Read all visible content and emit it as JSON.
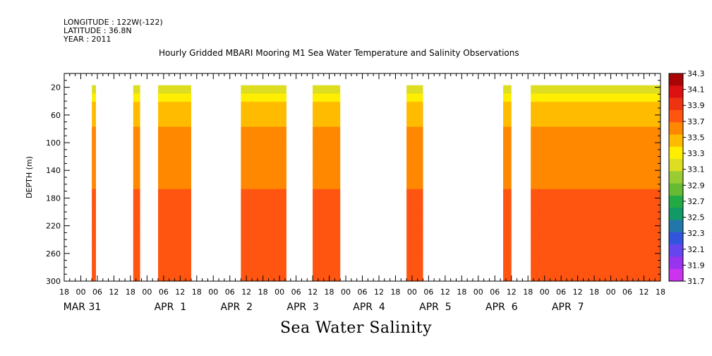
{
  "meta": {
    "longitude": "LONGITUDE : 122W(-122)",
    "latitude": "LATITUDE : 36.8N",
    "year": "YEAR : 2011"
  },
  "plot_title": "Hourly Gridded MBARI Mooring M1 Sea Water Temperature and Salinity Observations",
  "main_title": "Sea Water Salinity",
  "chart_data": {
    "type": "heatmap",
    "title": "Hourly Gridded MBARI Mooring M1 Sea Water Temperature and Salinity Observations",
    "xlabel": "",
    "ylabel": "DEPTH (m)",
    "y_reversed": true,
    "ylim": [
      300,
      0
    ],
    "y_ticks": [
      20,
      60,
      100,
      140,
      180,
      220,
      260,
      300
    ],
    "x_range_hours": [
      -6,
      210
    ],
    "x_hour_ticks": [
      "18",
      "00",
      "06",
      "12",
      "18",
      "00",
      "06",
      "12",
      "18",
      "00",
      "06",
      "12",
      "18",
      "00",
      "06",
      "12",
      "18",
      "00",
      "06",
      "12",
      "18",
      "00",
      "06",
      "12",
      "18",
      "00",
      "06",
      "12",
      "18",
      "00",
      "06",
      "12",
      "18",
      "00",
      "06",
      "12",
      "18"
    ],
    "x_date_labels": [
      "MAR 31",
      "APR  1",
      "APR  2",
      "APR  3",
      "APR  4",
      "APR  5",
      "APR  6",
      "APR  7"
    ],
    "colorbar": {
      "levels": [
        31.7,
        31.9,
        32.1,
        32.3,
        32.5,
        32.7,
        32.9,
        33.1,
        33.3,
        33.5,
        33.7,
        33.9,
        34.1,
        34.3
      ],
      "colors": [
        "#cc33ee",
        "#9933ee",
        "#6644ee",
        "#3355dd",
        "#2277aa",
        "#119966",
        "#22aa44",
        "#66bb33",
        "#99cc33",
        "#dddd22",
        "#ffee00",
        "#ffbb00",
        "#ff8800",
        "#ff5511",
        "#ee3311",
        "#dd1111",
        "#aa0505"
      ]
    },
    "data_segments_hours": [
      [
        4,
        5.5
      ],
      [
        19,
        21.5
      ],
      [
        28,
        40
      ],
      [
        58,
        74.5
      ],
      [
        84,
        94
      ],
      [
        118,
        124
      ],
      [
        153,
        156
      ],
      [
        163,
        210
      ]
    ],
    "profile": [
      {
        "depth": 20,
        "salinity": 33.4
      },
      {
        "depth": 40,
        "salinity": 33.7
      },
      {
        "depth": 60,
        "salinity": 33.85
      },
      {
        "depth": 100,
        "salinity": 33.95
      },
      {
        "depth": 140,
        "salinity": 34.05
      },
      {
        "depth": 180,
        "salinity": 34.12
      },
      {
        "depth": 220,
        "salinity": 34.15
      },
      {
        "depth": 260,
        "salinity": 34.22
      },
      {
        "depth": 300,
        "salinity": 34.1
      }
    ]
  }
}
